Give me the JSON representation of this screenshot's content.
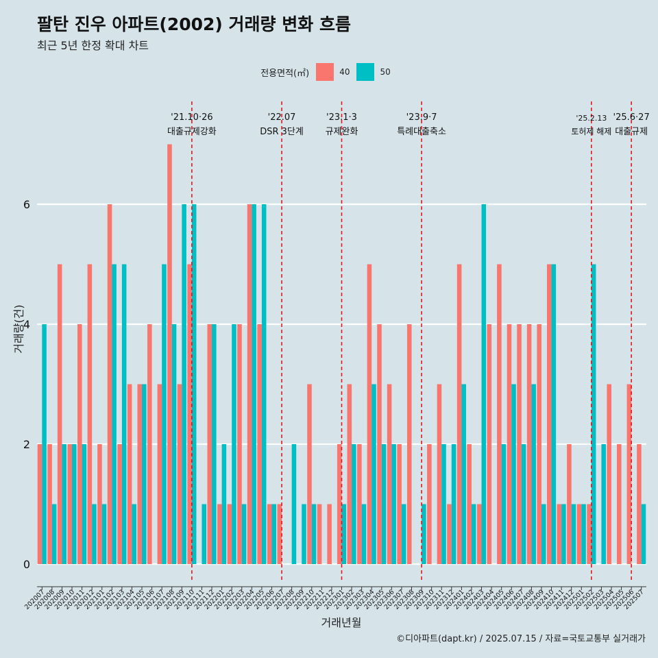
{
  "chart_data": {
    "type": "bar",
    "title": "팔탄 진우 아파트(2002) 거래량 변화 흐름",
    "subtitle": "최근 5년 한정 확대 차트",
    "xlabel": "거래년월",
    "ylabel": "거래량(건)",
    "caption": "©디아파트(dapt.kr) / 2025.07.15 / 자료=국토교통부 실거래가",
    "legend_title": "전용면적(㎡)",
    "legend_position": "top",
    "ylim": [
      -0.3,
      7.4
    ],
    "yticks": [
      0,
      2,
      4,
      6
    ],
    "grid": true,
    "categories": [
      "202007",
      "202008",
      "202009",
      "202010",
      "202011",
      "202012",
      "202101",
      "202102",
      "202103",
      "202104",
      "202105",
      "202106",
      "202107",
      "202108",
      "202109",
      "202110",
      "202111",
      "202112",
      "202201",
      "202202",
      "202203",
      "202204",
      "202205",
      "202206",
      "202207",
      "202208",
      "202209",
      "202210",
      "202211",
      "202212",
      "202301",
      "202302",
      "202303",
      "202304",
      "202305",
      "202306",
      "202307",
      "202308",
      "202309",
      "202310",
      "202311",
      "202312",
      "202401",
      "202402",
      "202403",
      "202404",
      "202405",
      "202406",
      "202407",
      "202408",
      "202409",
      "202410",
      "202411",
      "202412",
      "202501",
      "202502",
      "202503",
      "202504",
      "202505",
      "202506",
      "202507"
    ],
    "series": [
      {
        "name": "40",
        "color": "#F8766D",
        "values": [
          2,
          2,
          5,
          2,
          4,
          5,
          2,
          6,
          2,
          3,
          3,
          4,
          3,
          7,
          3,
          5,
          0,
          4,
          1,
          1,
          4,
          6,
          4,
          1,
          1,
          0,
          0,
          3,
          1,
          1,
          2,
          3,
          2,
          5,
          4,
          3,
          2,
          4,
          0,
          2,
          3,
          1,
          5,
          2,
          1,
          4,
          5,
          4,
          4,
          4,
          4,
          5,
          1,
          2,
          1,
          1,
          0,
          3,
          2,
          3,
          2
        ]
      },
      {
        "name": "50",
        "color": "#00BFC4",
        "values": [
          4,
          1,
          2,
          2,
          2,
          1,
          1,
          5,
          5,
          1,
          3,
          0,
          5,
          4,
          6,
          6,
          1,
          4,
          2,
          4,
          1,
          6,
          6,
          1,
          0,
          2,
          1,
          1,
          0,
          0,
          1,
          2,
          1,
          3,
          2,
          2,
          1,
          0,
          1,
          0,
          2,
          2,
          3,
          1,
          6,
          0,
          2,
          3,
          2,
          3,
          1,
          5,
          1,
          1,
          1,
          5,
          2,
          0,
          0,
          0,
          1
        ]
      }
    ],
    "annotations": [
      {
        "x": "202110",
        "label_line1": "'21.10·26",
        "label_line2": "대출규제강화"
      },
      {
        "x": "202207",
        "label_line1": "'22.07",
        "label_line2": "DSR 3단계"
      },
      {
        "x": "202301",
        "label_line1": "'23.1·3",
        "label_line2": "규제완화"
      },
      {
        "x": "202309",
        "label_line1": "'23.9·7",
        "label_line2": "특례대출축소"
      },
      {
        "x": "202502",
        "label_line1": "'25.2.13",
        "label_line2": "토허제 해제"
      },
      {
        "x": "202506",
        "label_line1": "'25.6·27",
        "label_line2": "대출규제"
      }
    ]
  }
}
